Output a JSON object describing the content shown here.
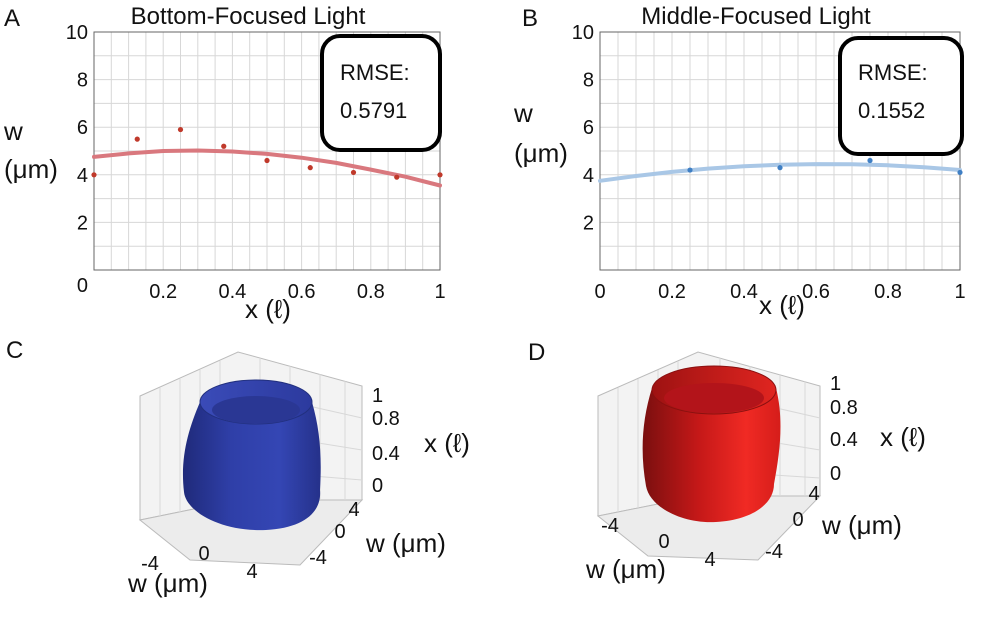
{
  "colors": {
    "bottom_fit": "#d9787e",
    "bottom_point": "#c0392b",
    "middle_fit": "#a9c7e6",
    "middle_point": "#3f7fc4",
    "blue_shape": "#2d3b9c",
    "red_shape": "#e3211d"
  },
  "chart_data": [
    {
      "type": "scatter",
      "panel": "A",
      "title": "Bottom-Focused Light",
      "xlabel": "x (ℓ)",
      "ylabel": "w (μm)",
      "xlim": [
        0,
        1
      ],
      "ylim": [
        0,
        10
      ],
      "x_ticks": [
        "0",
        "0.2",
        "0.4",
        "0.6",
        "0.8",
        "1"
      ],
      "y_ticks": [
        "2",
        "4",
        "6",
        "8",
        "10"
      ],
      "points": {
        "x": [
          0,
          0.125,
          0.25,
          0.375,
          0.5,
          0.625,
          0.75,
          0.875,
          1
        ],
        "y": [
          4.0,
          5.5,
          5.9,
          5.2,
          4.6,
          4.3,
          4.1,
          3.9,
          4.0
        ]
      },
      "fit": {
        "x": [
          0,
          0.1,
          0.2,
          0.3,
          0.4,
          0.5,
          0.6,
          0.7,
          0.8,
          0.9,
          1
        ],
        "y": [
          4.75,
          4.9,
          5.0,
          5.02,
          4.98,
          4.88,
          4.72,
          4.5,
          4.22,
          3.92,
          3.55
        ]
      },
      "annotation": {
        "label": "RMSE:",
        "value": "0.5791"
      }
    },
    {
      "type": "scatter",
      "panel": "B",
      "title": "Middle-Focused Light",
      "xlabel": "x (ℓ)",
      "ylabel": "w (μm)",
      "xlim": [
        0,
        1
      ],
      "ylim": [
        0,
        10
      ],
      "x_ticks": [
        "0",
        "0.2",
        "0.4",
        "0.6",
        "0.8",
        "1"
      ],
      "y_ticks": [
        "2",
        "4",
        "6",
        "8",
        "10"
      ],
      "points": {
        "x": [
          0.25,
          0.5,
          0.75,
          1
        ],
        "y": [
          4.2,
          4.3,
          4.6,
          4.1
        ]
      },
      "fit": {
        "x": [
          0,
          0.1,
          0.2,
          0.3,
          0.4,
          0.5,
          0.6,
          0.7,
          0.8,
          0.9,
          1
        ],
        "y": [
          3.75,
          3.95,
          4.12,
          4.26,
          4.36,
          4.42,
          4.45,
          4.44,
          4.4,
          4.32,
          4.2
        ]
      },
      "annotation": {
        "label": "RMSE:",
        "value": "0.1552"
      }
    },
    {
      "type": "surface3d",
      "panel": "C",
      "x_label": "x (ℓ)",
      "w_label_right": "w (μm)",
      "w_label_bottom": "w (μm)",
      "z_ticks": [
        "1",
        "0.8",
        "0.4",
        "0"
      ],
      "w_ticks_right": [
        "4",
        "0",
        "-4"
      ],
      "w_ticks_bottom": [
        "-4",
        "0",
        "4"
      ],
      "color": "#2d3b9c"
    },
    {
      "type": "surface3d",
      "panel": "D",
      "x_label": "x (ℓ)",
      "w_label_right": "w (μm)",
      "w_label_bottom": "w (μm)",
      "z_ticks": [
        "1",
        "0.8",
        "0.4",
        "0"
      ],
      "w_ticks_right": [
        "4",
        "0",
        "-4"
      ],
      "w_ticks_bottom": [
        "-4",
        "0",
        "4"
      ],
      "color": "#e3211d"
    }
  ]
}
